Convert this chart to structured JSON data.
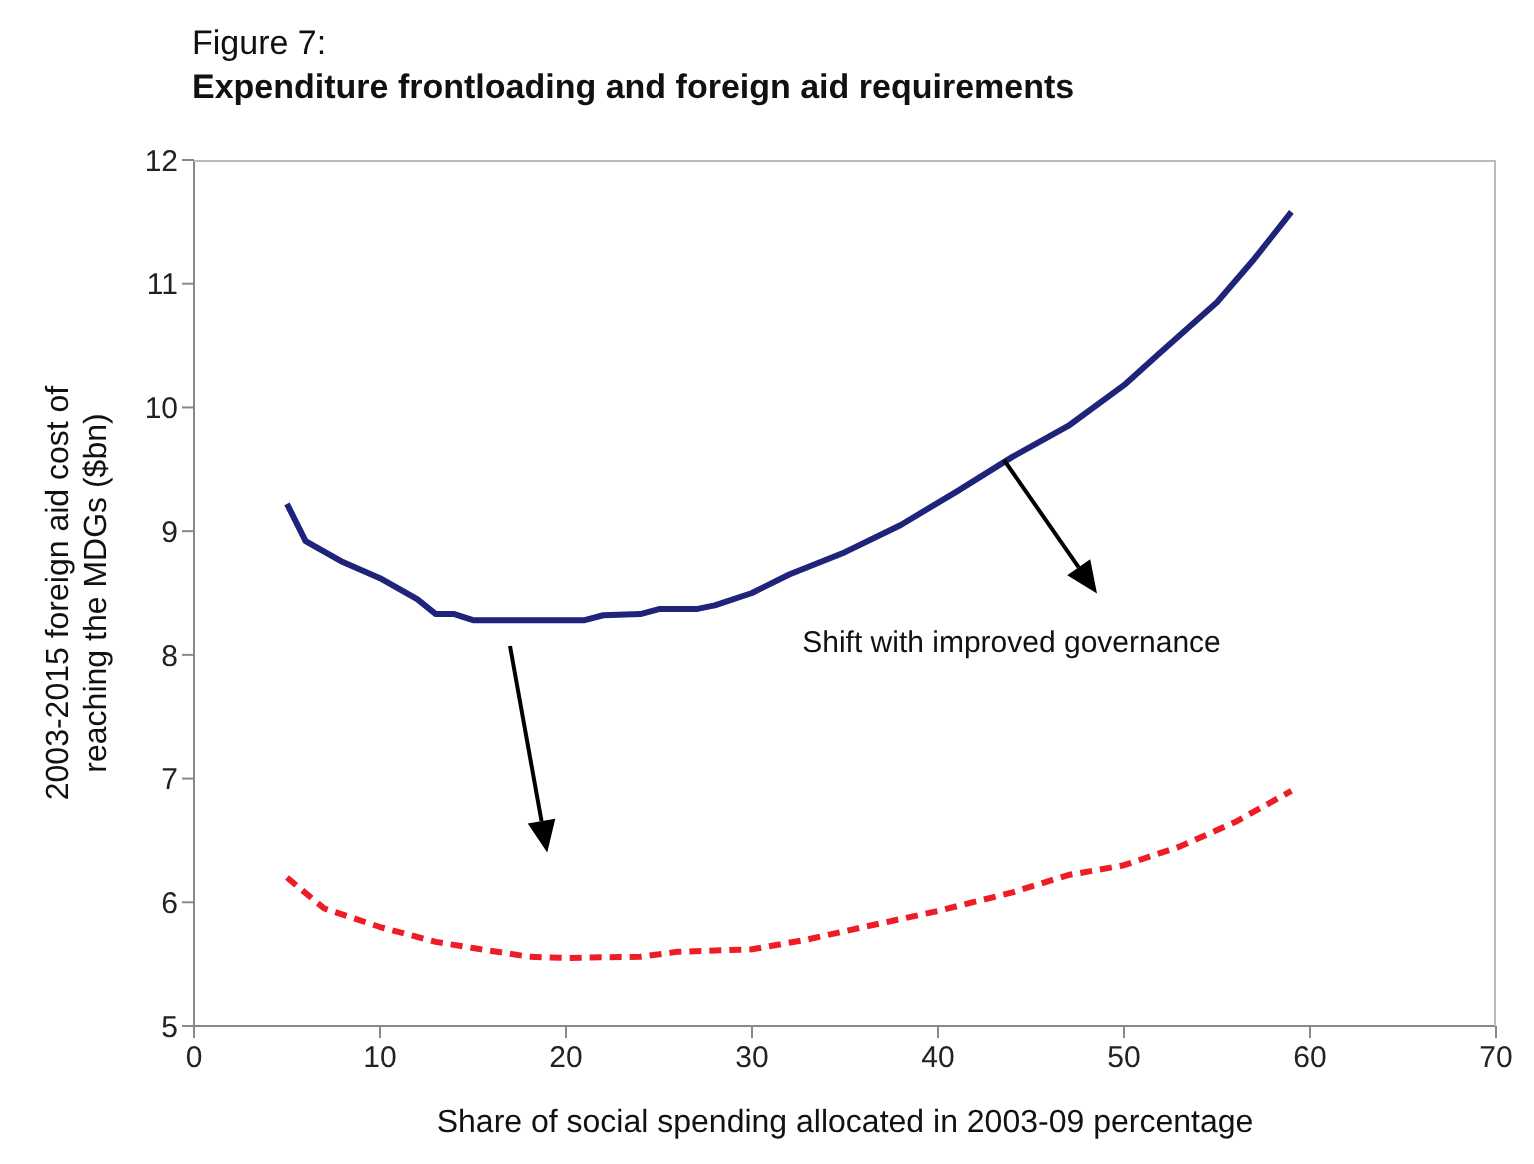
{
  "chart_data": {
    "type": "line",
    "title": "Figure 7:",
    "subtitle": "Expenditure frontloading and foreign aid requirements",
    "xlabel": "Share of social spending allocated in 2003-09 percentage",
    "ylabel": "2003-2015 foreign aid cost of reaching the MDGs ($bn)",
    "xlim": [
      0,
      70
    ],
    "xticks": [
      0,
      10,
      20,
      30,
      40,
      50,
      60,
      70
    ],
    "ylim": [
      5,
      12
    ],
    "yticks": [
      5,
      6,
      7,
      8,
      9,
      10,
      11,
      12
    ],
    "grid": false,
    "legend": false,
    "marker": "none",
    "annotations": [
      "Shift with improved governance"
    ],
    "series": [
      {
        "color": "#1f237a",
        "line_style": "solid",
        "x": [
          5,
          6,
          8,
          10,
          12,
          13,
          14,
          15,
          20,
          21,
          22,
          24,
          25,
          27,
          28,
          30,
          32,
          35,
          38,
          41,
          44,
          47,
          50,
          52,
          55,
          57,
          59
        ],
        "values": [
          9.22,
          8.92,
          8.75,
          8.62,
          8.45,
          8.33,
          8.33,
          8.28,
          8.28,
          8.28,
          8.32,
          8.33,
          8.37,
          8.37,
          8.4,
          8.5,
          8.65,
          8.83,
          9.05,
          9.32,
          9.6,
          9.85,
          10.18,
          10.45,
          10.85,
          11.2,
          11.58
        ]
      },
      {
        "color": "#ee1c25",
        "line_style": "dashed",
        "x": [
          5,
          7,
          10,
          13,
          15,
          18,
          20,
          24,
          26,
          30,
          33,
          36,
          40,
          44,
          47,
          50,
          53,
          56,
          59
        ],
        "values": [
          6.2,
          5.95,
          5.8,
          5.68,
          5.63,
          5.56,
          5.55,
          5.56,
          5.6,
          5.62,
          5.7,
          5.8,
          5.93,
          6.08,
          6.22,
          6.3,
          6.45,
          6.65,
          6.9
        ]
      }
    ]
  }
}
